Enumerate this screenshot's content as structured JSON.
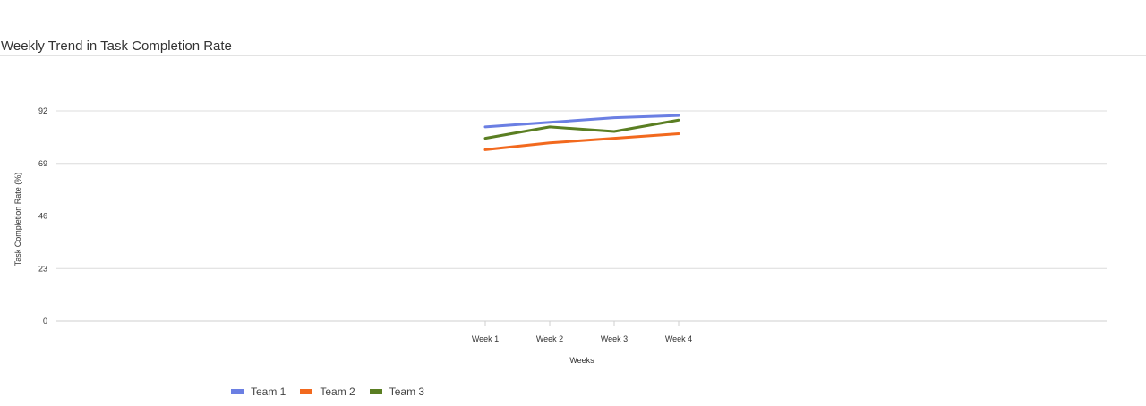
{
  "header": {
    "title": "Weekly Trend in Task Completion Rate"
  },
  "chart_data": {
    "type": "line",
    "title": "Weekly Trend in Task Completion Rate",
    "xlabel": "Weeks",
    "ylabel": "Task Completion Rate (%)",
    "categories": [
      "Week 1",
      "Week 2",
      "Week 3",
      "Week 4"
    ],
    "ylim": [
      0,
      92
    ],
    "yticks": [
      0,
      23,
      46,
      69,
      92
    ],
    "grid": true,
    "legend_position": "bottom-left",
    "series": [
      {
        "name": "Team 1",
        "color": "#6b7fe3",
        "values": [
          85,
          87,
          89,
          90
        ]
      },
      {
        "name": "Team 2",
        "color": "#f2691e",
        "values": [
          75,
          78,
          80,
          82
        ]
      },
      {
        "name": "Team 3",
        "color": "#5a7e22",
        "values": [
          80,
          85,
          83,
          88
        ]
      }
    ]
  }
}
